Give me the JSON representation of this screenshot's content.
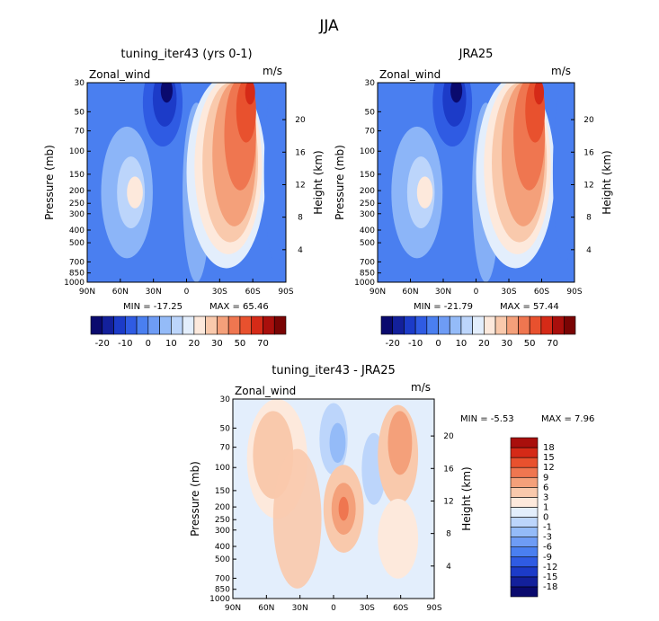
{
  "figure": {
    "title": "JJA"
  },
  "chart_data": [
    {
      "type": "heatmap",
      "title": "tuning_iter43 (yrs 0-1)",
      "variable": "Zonal_wind",
      "units": "m/s",
      "ylabel": "Pressure (mb)",
      "ylabel_right": "Height (km)",
      "x_ticks": [
        "90N",
        "60N",
        "30N",
        "0",
        "30S",
        "60S",
        "90S"
      ],
      "y_ticks": [
        "30",
        "50",
        "70",
        "100",
        "150",
        "200",
        "250",
        "300",
        "400",
        "500",
        "700",
        "850",
        "1000"
      ],
      "y_right_ticks": [
        "20",
        "16",
        "12",
        "8",
        "4"
      ],
      "min_label": "MIN = -17.25",
      "max_label": "MAX = 65.46",
      "levels": [
        -20,
        -10,
        0,
        10,
        20,
        30,
        50,
        70
      ],
      "level_labels": [
        "-20",
        "-10",
        "0",
        "10",
        "20",
        "30",
        "50",
        "70"
      ],
      "colorbar_orientation": "horizontal",
      "colorbar_colors": [
        "#0a0a6e",
        "#13209b",
        "#1c3bc8",
        "#2f5be3",
        "#4a7ff0",
        "#6e9cf5",
        "#94bbf8",
        "#bcd5fb",
        "#e3eefc",
        "#fde9dc",
        "#f9c9ac",
        "#f4a07a",
        "#ef7650",
        "#e8512e",
        "#d52a17",
        "#a90f0c",
        "#7a0404"
      ]
    },
    {
      "type": "heatmap",
      "title": "JRA25",
      "variable": "Zonal_wind",
      "units": "m/s",
      "ylabel": "Pressure (mb)",
      "ylabel_right": "Height (km)",
      "x_ticks": [
        "90N",
        "60N",
        "30N",
        "0",
        "30S",
        "60S",
        "90S"
      ],
      "y_ticks": [
        "30",
        "50",
        "70",
        "100",
        "150",
        "200",
        "250",
        "300",
        "400",
        "500",
        "700",
        "850",
        "1000"
      ],
      "y_right_ticks": [
        "20",
        "16",
        "12",
        "8",
        "4"
      ],
      "min_label": "MIN = -21.79",
      "max_label": "MAX = 57.44",
      "levels": [
        -20,
        -10,
        0,
        10,
        20,
        30,
        50,
        70
      ],
      "level_labels": [
        "-20",
        "-10",
        "0",
        "10",
        "20",
        "30",
        "50",
        "70"
      ],
      "colorbar_orientation": "horizontal",
      "colorbar_colors": [
        "#0a0a6e",
        "#13209b",
        "#1c3bc8",
        "#2f5be3",
        "#4a7ff0",
        "#6e9cf5",
        "#94bbf8",
        "#bcd5fb",
        "#e3eefc",
        "#fde9dc",
        "#f9c9ac",
        "#f4a07a",
        "#ef7650",
        "#e8512e",
        "#d52a17",
        "#a90f0c",
        "#7a0404"
      ]
    },
    {
      "type": "heatmap",
      "title": "tuning_iter43 - JRA25",
      "variable": "Zonal_wind",
      "units": "m/s",
      "ylabel": "Pressure (mb)",
      "ylabel_right": "Height (km)",
      "x_ticks": [
        "90N",
        "60N",
        "30N",
        "0",
        "30S",
        "60S",
        "90S"
      ],
      "y_ticks": [
        "30",
        "50",
        "70",
        "100",
        "150",
        "200",
        "250",
        "300",
        "400",
        "500",
        "700",
        "850",
        "1000"
      ],
      "y_right_ticks": [
        "20",
        "16",
        "12",
        "8",
        "4"
      ],
      "min_label": "MIN = -5.53",
      "max_label": "MAX = 7.96",
      "levels": [
        -18,
        -15,
        -12,
        -9,
        -6,
        -3,
        -1,
        0,
        1,
        3,
        6,
        9,
        12,
        15,
        18
      ],
      "level_labels": [
        "-18",
        "-15",
        "-12",
        "-9",
        "-6",
        "-3",
        "-1",
        "0",
        "1",
        "3",
        "6",
        "9",
        "12",
        "15",
        "18"
      ],
      "colorbar_orientation": "vertical",
      "colorbar_colors": [
        "#0a0a6e",
        "#13209b",
        "#1c3bc8",
        "#2f5be3",
        "#4a7ff0",
        "#6e9cf5",
        "#94bbf8",
        "#bcd5fb",
        "#e3eefc",
        "#fde9dc",
        "#f9c9ac",
        "#f4a07a",
        "#ef7650",
        "#e8512e",
        "#d52a17",
        "#a90f0c"
      ]
    }
  ]
}
